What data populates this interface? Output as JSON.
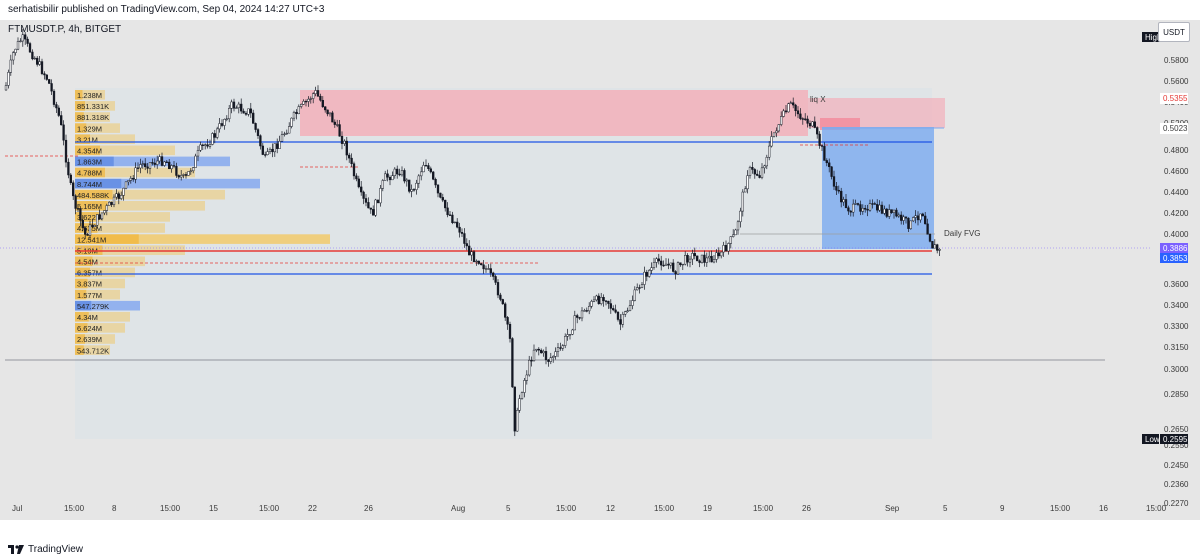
{
  "header": {
    "published": "serhatisbilir published on TradingView.com, Sep 04, 2024 14:27 UTC+3"
  },
  "chart": {
    "symbol": "FTMUSDT.P, 4h, BITGET",
    "currency_button": "USDT",
    "high_tag": "High",
    "low_tag": "Low",
    "low_value": "0.2595",
    "price_ticks": [
      "0.5800",
      "0.5600",
      "0.5400",
      "0.5200",
      "0.5023",
      "0.4800",
      "0.4600",
      "0.4400",
      "0.4200",
      "0.4000",
      "0.3600",
      "0.3400",
      "0.3300",
      "0.3150",
      "0.3000",
      "0.2850",
      "0.2650",
      "0.2550",
      "0.2450",
      "0.2360",
      "0.2270"
    ],
    "price_tags": {
      "red": "0.5355",
      "grey": "0.5023",
      "current_a": "0.3886",
      "current_b": "0.3853"
    },
    "time_ticks": [
      "Jul",
      "15:00",
      "8",
      "15:00",
      "15",
      "15:00",
      "22",
      "26",
      "Aug",
      "15:00",
      "5",
      "15:00",
      "12",
      "15:00",
      "19",
      "15:00",
      "26",
      "Sep",
      "5",
      "9",
      "15:00",
      "16",
      "15:00"
    ],
    "annotations": {
      "liq": "liq X",
      "daily_fvg": "Daily FVG"
    },
    "volume_profile": [
      "1.238M",
      "851.331K",
      "881.318K",
      "1.329M",
      "3.21M",
      "4.354M",
      "1.863M",
      "4.788M",
      "8.744M",
      "484.588K",
      "5.165M",
      "3.622M",
      "4.635M",
      "12.541M",
      "5.19M",
      "4.54M",
      "6.357M",
      "3.837M",
      "1.577M",
      "547.279K",
      "4.34M",
      "6.624M",
      "2.639M",
      "543.712K"
    ],
    "colors": {
      "supply_zone": "#f4a5b0",
      "demand_blue": "#6fa4f0",
      "vp_bar": "#f5c451",
      "poc_line": "#e53935",
      "level_line": "#1e53e5",
      "candle": "#131722"
    }
  },
  "footer": {
    "brand": "TradingView"
  }
}
